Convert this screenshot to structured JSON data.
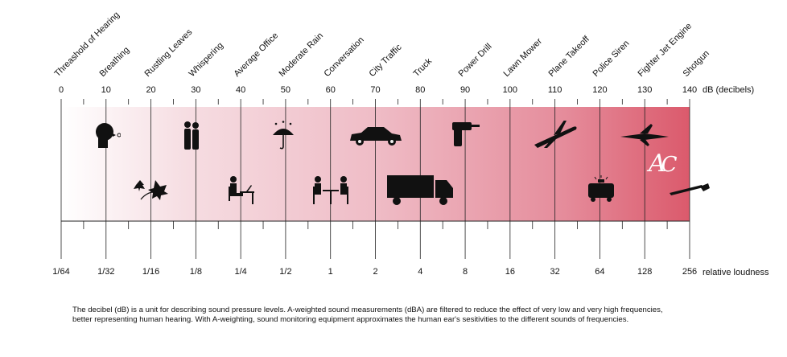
{
  "colors": {
    "gradient_start": "#ffffff",
    "gradient_end": "#db5a6c",
    "lines": "#111111"
  },
  "sounds": [
    {
      "label": "Threashold of Hearing",
      "db": "0",
      "loudness": "1/64"
    },
    {
      "label": "Breathing",
      "db": "10",
      "loudness": "1/32",
      "icon": "breathing-head-icon",
      "row": "top"
    },
    {
      "label": "Rustling Leaves",
      "db": "20",
      "loudness": "1/16",
      "icon": "leaves-icon",
      "row": "bottom"
    },
    {
      "label": "Whispering",
      "db": "30",
      "loudness": "1/8",
      "icon": "whispering-people-icon",
      "row": "top"
    },
    {
      "label": "Average Office",
      "db": "40",
      "loudness": "1/4",
      "icon": "office-worker-icon",
      "row": "bottom"
    },
    {
      "label": "Moderate Rain",
      "db": "50",
      "loudness": "1/2",
      "icon": "umbrella-rain-icon",
      "row": "top"
    },
    {
      "label": "Conversation",
      "db": "60",
      "loudness": "1",
      "icon": "conversation-table-icon",
      "row": "bottom"
    },
    {
      "label": "City Traffic",
      "db": "70",
      "loudness": "2",
      "icon": "car-icon",
      "row": "top"
    },
    {
      "label": "Truck",
      "db": "80",
      "loudness": "4",
      "icon": "truck-icon",
      "row": "bottom"
    },
    {
      "label": "Power Drill",
      "db": "90",
      "loudness": "8",
      "icon": "power-drill-icon",
      "row": "top"
    },
    {
      "label": "Lawn Mower",
      "db": "100",
      "loudness": "16",
      "icon": "lawn-mower-icon",
      "row": "bottom"
    },
    {
      "label": "Plane Takeoff",
      "db": "110",
      "loudness": "32",
      "icon": "airplane-icon",
      "row": "top"
    },
    {
      "label": "Police Siren",
      "db": "120",
      "loudness": "64",
      "icon": "police-car-icon",
      "row": "bottom"
    },
    {
      "label": "Fighter Jet Engine",
      "db": "130",
      "loudness": "128",
      "icon": "fighter-jet-icon",
      "row": "top"
    },
    {
      "label": "Shotgun",
      "db": "140",
      "loudness": "256",
      "icon": "shotgun-icon",
      "row": "bottom"
    }
  ],
  "db_unit": "dB (decibels)",
  "loudness_unit": "relative loudness",
  "logo": "AC",
  "note": "The decibel (dB) is a unit for describing sound pressure levels.  A-weighted sound measurements (dBA) are filtered to reduce the effect of very low and very high frequencies, better representing human hearing. With A-weighting, sound monitoring equipment approximates the human ear's sesitivities to the different sounds of frequencies."
}
